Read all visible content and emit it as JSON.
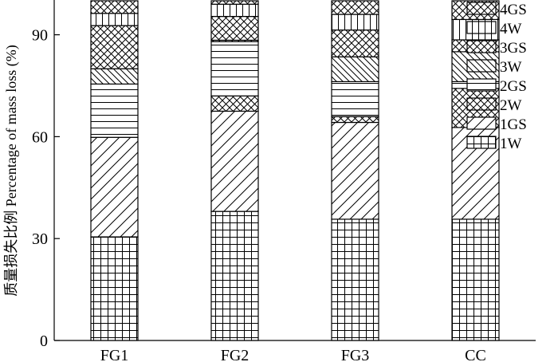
{
  "chart_data": {
    "type": "bar",
    "stacked": true,
    "categories": [
      "FG1",
      "FG2",
      "FG3",
      "CC"
    ],
    "series": [
      {
        "name": "1W",
        "pattern": "grid",
        "values": [
          30.5,
          38.0,
          35.7,
          35.7
        ]
      },
      {
        "name": "1GS",
        "pattern": "diag-fwd",
        "values": [
          29.3,
          29.5,
          28.5,
          27.0
        ]
      },
      {
        "name": "2W",
        "pattern": "crosshatch",
        "values": [
          0.0,
          4.5,
          1.7,
          11.5
        ]
      },
      {
        "name": "2GS",
        "pattern": "horizontal",
        "values": [
          15.7,
          16.0,
          10.3,
          2.0
        ]
      },
      {
        "name": "3W",
        "pattern": "diag-back",
        "values": [
          4.5,
          0.4,
          7.3,
          8.8
        ]
      },
      {
        "name": "3GS",
        "pattern": "crosshatch",
        "values": [
          12.7,
          7.0,
          7.9,
          3.5
        ]
      },
      {
        "name": "4W",
        "pattern": "vertical",
        "values": [
          3.6,
          3.6,
          4.6,
          6.0
        ]
      },
      {
        "name": "4GS",
        "pattern": "crosshatch",
        "values": [
          3.7,
          1.0,
          4.0,
          5.5
        ]
      }
    ],
    "ylabel": "质量损失比例 Percentage of mass loss (%)",
    "xlabel": "",
    "ylim": [
      0,
      100
    ],
    "yticks": [
      0,
      30,
      60,
      90
    ],
    "legend_position": "top-right",
    "legend_order": [
      "4GS",
      "4W",
      "3GS",
      "3W",
      "2GS",
      "2W",
      "1GS",
      "1W"
    ],
    "grid": false
  }
}
